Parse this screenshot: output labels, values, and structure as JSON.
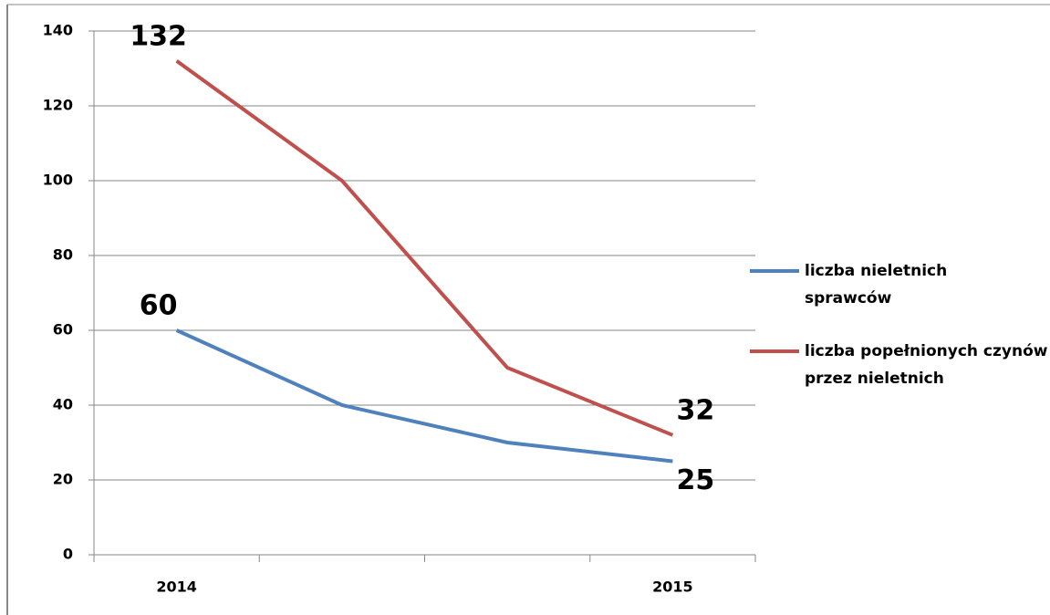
{
  "chart_data": {
    "type": "line",
    "categories": [
      "2014",
      null,
      null,
      "2015"
    ],
    "series": [
      {
        "name": "liczba nieletnich sprawców",
        "color": "#4f81bd",
        "values": [
          60,
          40,
          30,
          25
        ]
      },
      {
        "name": "liczba popełnionych czynów przez nieletnich",
        "color": "#c0504d",
        "values": [
          132,
          100,
          50,
          32
        ]
      }
    ],
    "ylim": [
      0,
      140
    ],
    "yticks": [
      0,
      20,
      40,
      60,
      80,
      100,
      120,
      140
    ],
    "grid": true,
    "legend": "right"
  }
}
